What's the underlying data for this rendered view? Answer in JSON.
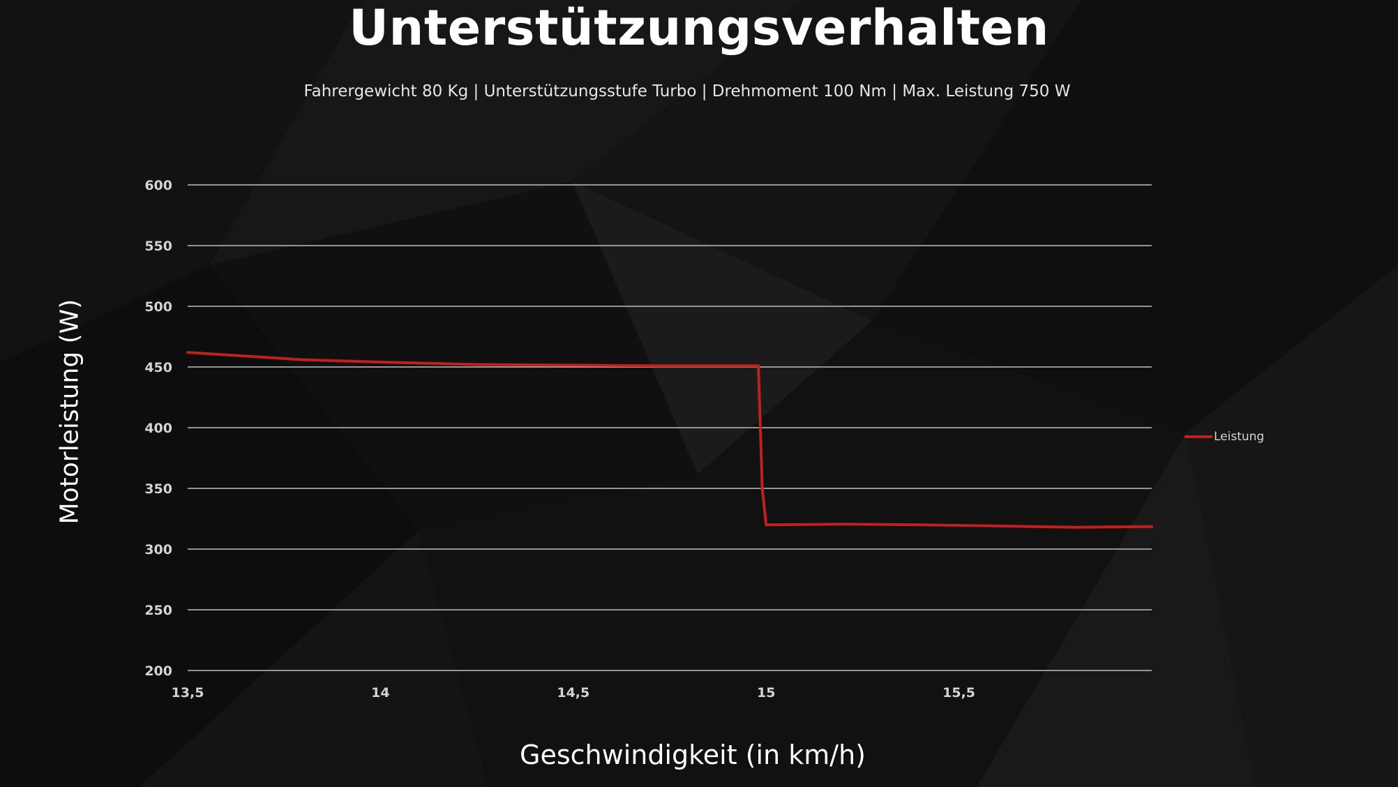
{
  "title": "Unterstützungsverhalten",
  "subtitle": "Fahrergewicht 80 Kg | Unterstützungsstufe Turbo | Drehmoment 100 Nm | Max. Leistung 750 W",
  "colors": {
    "background": "#0c0c0c",
    "gridline": "#bfbfbf",
    "series": "#c0201e",
    "text": "#ffffff",
    "tick": "#d4d4d4"
  },
  "chart_data": {
    "type": "line",
    "title": "Unterstützungsverhalten",
    "subtitle": "Fahrergewicht 80 Kg | Unterstützungsstufe Turbo | Drehmoment 100 Nm | Max. Leistung 750 W",
    "xlabel": "Geschwindigkeit (in km/h)",
    "ylabel": "Motorleistung (W)",
    "xlim": [
      13.5,
      16.0
    ],
    "ylim": [
      200,
      600
    ],
    "x_ticks": [
      13.5,
      14,
      14.5,
      15,
      15.5
    ],
    "x_tick_labels": [
      "13,5",
      "14",
      "14,5",
      "15",
      "15,5"
    ],
    "y_ticks": [
      200,
      250,
      300,
      350,
      400,
      450,
      500,
      550,
      600
    ],
    "y_tick_labels": [
      "200",
      "250",
      "300",
      "350",
      "400",
      "450",
      "500",
      "550",
      "600"
    ],
    "grid": "horizontal",
    "legend_position": "right",
    "series": [
      {
        "name": "Leistung",
        "color": "#c0201e",
        "x": [
          13.5,
          13.6,
          13.8,
          14.0,
          14.25,
          14.5,
          14.75,
          14.98,
          14.99,
          15.0,
          15.2,
          15.4,
          15.6,
          15.8,
          16.0
        ],
        "y": [
          462,
          460,
          456,
          454,
          452,
          451.5,
          451,
          451,
          350,
          320,
          320.5,
          320,
          319,
          318,
          318.5
        ]
      }
    ]
  }
}
